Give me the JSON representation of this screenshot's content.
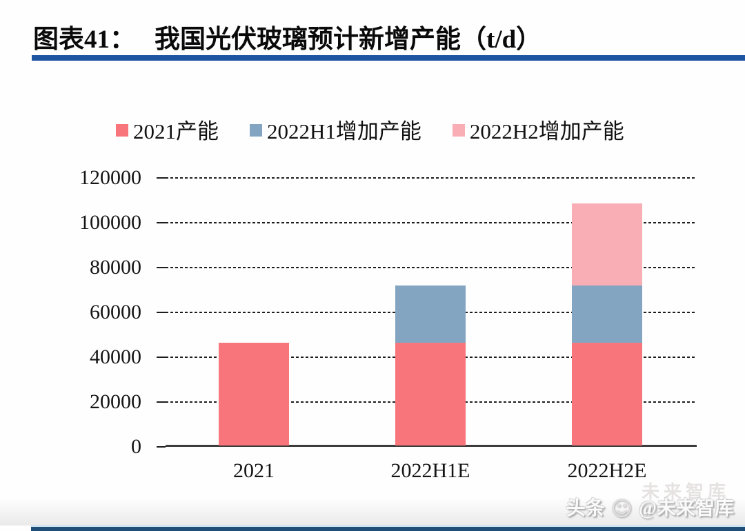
{
  "header": {
    "tag": "图表41：",
    "title": "我国光伏玻璃预计新增产能（t/d）"
  },
  "chart_data": {
    "type": "bar",
    "stacked": true,
    "title": "我国光伏玻璃预计新增产能（t/d）",
    "unit": "t/d",
    "categories": [
      "2021",
      "2022H1E",
      "2022H2E"
    ],
    "series": [
      {
        "name": "2021产能",
        "color": "#f7757b",
        "values": [
          46000,
          46000,
          46000
        ]
      },
      {
        "name": "2022H1增加产能",
        "color": "#84a5c1",
        "values": [
          0,
          25500,
          25500
        ]
      },
      {
        "name": "2022H2增加产能",
        "color": "#f9adb4",
        "values": [
          0,
          0,
          36500
        ]
      }
    ],
    "stack_totals": [
      46000,
      71500,
      108000
    ],
    "ylim": [
      0,
      120000
    ],
    "ytick_interval": 20000,
    "yticks": [
      "120000",
      "100000",
      "80000",
      "60000",
      "40000",
      "20000",
      "0"
    ],
    "grid": "horizontal-dashed",
    "legend_position": "top"
  },
  "colors": {
    "divider": "#1d55a1",
    "axis": "#3c3c3c",
    "gridline": "#1c1c1c",
    "bottom_bar": "#1f4e79",
    "bottom_bar_light": "#cfe3f0"
  },
  "watermark": {
    "ghost": "未来智库",
    "prefix": "头条",
    "smiley_icon": "smiley-logo",
    "handle": "@未来智库"
  }
}
